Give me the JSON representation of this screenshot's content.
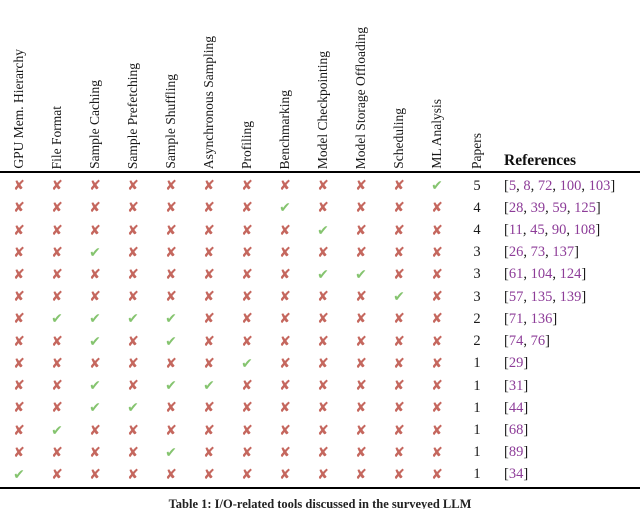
{
  "table": {
    "columns": [
      "GPU Mem. Hierarchy",
      "File Format",
      "Sample Caching",
      "Sample Prefetching",
      "Sample Shuffling",
      "Asynchronous Sampling",
      "Profiling",
      "Benchmarking",
      "Model Checkpointing",
      "Model Storage Offloading",
      "Scheduling",
      "ML Analysis",
      "Papers"
    ],
    "references_header": "References",
    "rows": [
      {
        "marks": [
          false,
          false,
          false,
          false,
          false,
          false,
          false,
          false,
          false,
          false,
          false,
          true
        ],
        "papers": "5",
        "refs": [
          "5",
          "8",
          "72",
          "100",
          "103"
        ]
      },
      {
        "marks": [
          false,
          false,
          false,
          false,
          false,
          false,
          false,
          true,
          false,
          false,
          false,
          false
        ],
        "papers": "4",
        "refs": [
          "28",
          "39",
          "59",
          "125"
        ]
      },
      {
        "marks": [
          false,
          false,
          false,
          false,
          false,
          false,
          false,
          false,
          true,
          false,
          false,
          false
        ],
        "papers": "4",
        "refs": [
          "11",
          "45",
          "90",
          "108"
        ]
      },
      {
        "marks": [
          false,
          false,
          true,
          false,
          false,
          false,
          false,
          false,
          false,
          false,
          false,
          false
        ],
        "papers": "3",
        "refs": [
          "26",
          "73",
          "137"
        ]
      },
      {
        "marks": [
          false,
          false,
          false,
          false,
          false,
          false,
          false,
          false,
          true,
          true,
          false,
          false
        ],
        "papers": "3",
        "refs": [
          "61",
          "104",
          "124"
        ]
      },
      {
        "marks": [
          false,
          false,
          false,
          false,
          false,
          false,
          false,
          false,
          false,
          false,
          true,
          false
        ],
        "papers": "3",
        "refs": [
          "57",
          "135",
          "139"
        ]
      },
      {
        "marks": [
          false,
          true,
          true,
          true,
          true,
          false,
          false,
          false,
          false,
          false,
          false,
          false
        ],
        "papers": "2",
        "refs": [
          "71",
          "136"
        ]
      },
      {
        "marks": [
          false,
          false,
          true,
          false,
          true,
          false,
          false,
          false,
          false,
          false,
          false,
          false
        ],
        "papers": "2",
        "refs": [
          "74",
          "76"
        ]
      },
      {
        "marks": [
          false,
          false,
          false,
          false,
          false,
          false,
          true,
          false,
          false,
          false,
          false,
          false
        ],
        "papers": "1",
        "refs": [
          "29"
        ]
      },
      {
        "marks": [
          false,
          false,
          true,
          false,
          true,
          true,
          false,
          false,
          false,
          false,
          false,
          false
        ],
        "papers": "1",
        "refs": [
          "31"
        ]
      },
      {
        "marks": [
          false,
          false,
          true,
          true,
          false,
          false,
          false,
          false,
          false,
          false,
          false,
          false
        ],
        "papers": "1",
        "refs": [
          "44"
        ]
      },
      {
        "marks": [
          false,
          true,
          false,
          false,
          false,
          false,
          false,
          false,
          false,
          false,
          false,
          false
        ],
        "papers": "1",
        "refs": [
          "68"
        ]
      },
      {
        "marks": [
          false,
          false,
          false,
          false,
          true,
          false,
          false,
          false,
          false,
          false,
          false,
          false
        ],
        "papers": "1",
        "refs": [
          "89"
        ]
      },
      {
        "marks": [
          true,
          false,
          false,
          false,
          false,
          false,
          false,
          false,
          false,
          false,
          false,
          false
        ],
        "papers": "1",
        "refs": [
          "34"
        ]
      }
    ],
    "check_glyph": "✔",
    "cross_glyph": "✘",
    "ref_open_bracket": "[",
    "ref_close_bracket": "]",
    "ref_separator": ", "
  },
  "caption": "Table 1: I/O-related tools discussed in the surveyed LLM",
  "colors": {
    "check": "#85c46f",
    "cross": "#c5675e",
    "reference_link": "#8d3c98",
    "rule": "#000000"
  }
}
